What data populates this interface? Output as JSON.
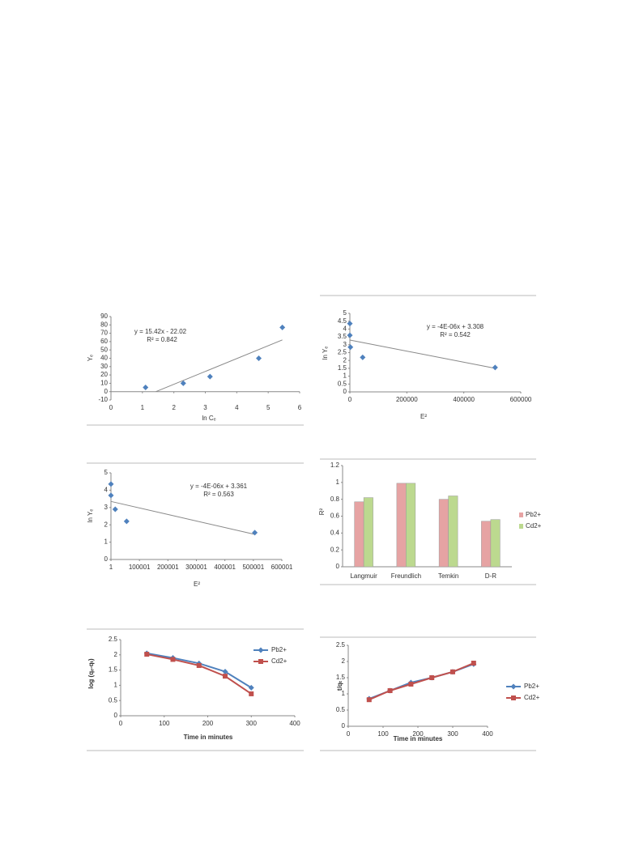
{
  "chart_data": [
    {
      "type": "scatter",
      "x_label": "ln Cₑ",
      "y_label": "Yₑ",
      "x": [
        1.1,
        2.3,
        3.15,
        4.7,
        5.45
      ],
      "values": [
        5,
        10,
        18,
        40,
        77
      ],
      "color": "#4f81bd",
      "trendline": {
        "x": [
          1.43,
          5.45
        ],
        "y": [
          0,
          62
        ]
      },
      "annotations": [
        "y = 15.42x - 22.02",
        "R² = 0.842"
      ],
      "xlim": [
        0,
        6
      ],
      "xticks": [
        0,
        1,
        2,
        3,
        4,
        5,
        6
      ],
      "ylim": [
        -10,
        90
      ],
      "yticks": [
        -10,
        0,
        10,
        20,
        30,
        40,
        50,
        60,
        70,
        80,
        90
      ]
    },
    {
      "type": "scatter",
      "x_label": "E²",
      "y_label": "ln Yₑ",
      "x": [
        0,
        0,
        2000,
        45000,
        510000
      ],
      "values": [
        4.35,
        3.6,
        2.85,
        2.2,
        1.55
      ],
      "color": "#4f81bd",
      "trendline": {
        "x": [
          0,
          510000
        ],
        "y": [
          3.3,
          1.5
        ]
      },
      "annotations": [
        "y = -4E-06x + 3.308",
        "R² = 0.542"
      ],
      "xlim": [
        0,
        600000
      ],
      "xticks": [
        0,
        200000,
        400000,
        600000
      ],
      "ylim": [
        0,
        5
      ],
      "yticks": [
        0,
        0.5,
        1,
        1.5,
        2,
        2.5,
        3,
        3.5,
        4,
        4.5,
        5
      ]
    },
    {
      "type": "scatter",
      "x_label": "E²",
      "y_label": "ln Yₑ",
      "x": [
        1,
        1,
        15000,
        55000,
        505000
      ],
      "values": [
        4.35,
        3.7,
        2.9,
        2.2,
        1.55
      ],
      "color": "#4f81bd",
      "trendline": {
        "x": [
          1,
          505000
        ],
        "y": [
          3.35,
          1.45
        ]
      },
      "annotations": [
        "y = -4E-06x + 3.361",
        "R² = 0.563"
      ],
      "xlim": [
        1,
        600001
      ],
      "xticks": [
        1,
        100001,
        200001,
        300001,
        400001,
        500001,
        600001
      ],
      "ylim": [
        0,
        5
      ],
      "yticks": [
        0,
        1,
        2,
        3,
        4,
        5
      ]
    },
    {
      "type": "bar",
      "y_label": "R²",
      "categories": [
        "Langmuir",
        "Freundlich",
        "Temkin",
        "D-R"
      ],
      "series": [
        {
          "name": "Pb2+",
          "color": "#e6a3a3",
          "values": [
            0.77,
            0.99,
            0.8,
            0.54
          ]
        },
        {
          "name": "Cd2+",
          "color": "#bcd98f",
          "values": [
            0.82,
            0.99,
            0.84,
            0.56
          ]
        }
      ],
      "ylim": [
        0,
        1.2
      ],
      "yticks": [
        0,
        0.2,
        0.4,
        0.6,
        0.8,
        1,
        1.2
      ],
      "legend": "right"
    },
    {
      "type": "line",
      "x_label": "Time in minutes",
      "y_label": "log (qₑ-qₜ)",
      "x": [
        60,
        120,
        180,
        240,
        300
      ],
      "series": [
        {
          "name": "Pb2+",
          "color": "#4f81bd",
          "marker": "diamond",
          "values": [
            2.05,
            1.9,
            1.72,
            1.45,
            0.92
          ]
        },
        {
          "name": "Cd2+",
          "color": "#c0504d",
          "marker": "square",
          "values": [
            2.02,
            1.85,
            1.65,
            1.3,
            0.72
          ]
        }
      ],
      "xlim": [
        0,
        400
      ],
      "xticks": [
        0,
        100,
        200,
        300,
        400
      ],
      "ylim": [
        0,
        2.5
      ],
      "yticks": [
        0,
        0.5,
        1,
        1.5,
        2,
        2.5
      ],
      "legend": "top right"
    },
    {
      "type": "line",
      "x_label": "Time in minutes",
      "y_label": "t/qₜ",
      "x": [
        60,
        120,
        180,
        240,
        300,
        360
      ],
      "series": [
        {
          "name": "Pb2+",
          "color": "#4f81bd",
          "marker": "diamond",
          "values": [
            0.85,
            1.1,
            1.35,
            1.5,
            1.68,
            1.92
          ]
        },
        {
          "name": "Cd2+",
          "color": "#c0504d",
          "marker": "square",
          "values": [
            0.82,
            1.1,
            1.3,
            1.5,
            1.68,
            1.95
          ]
        }
      ],
      "xlim": [
        0,
        400
      ],
      "xticks": [
        0,
        100,
        200,
        300,
        400
      ],
      "ylim": [
        0,
        2.5
      ],
      "yticks": [
        0,
        0.5,
        1,
        1.5,
        2,
        2.5
      ],
      "legend": "right"
    }
  ]
}
